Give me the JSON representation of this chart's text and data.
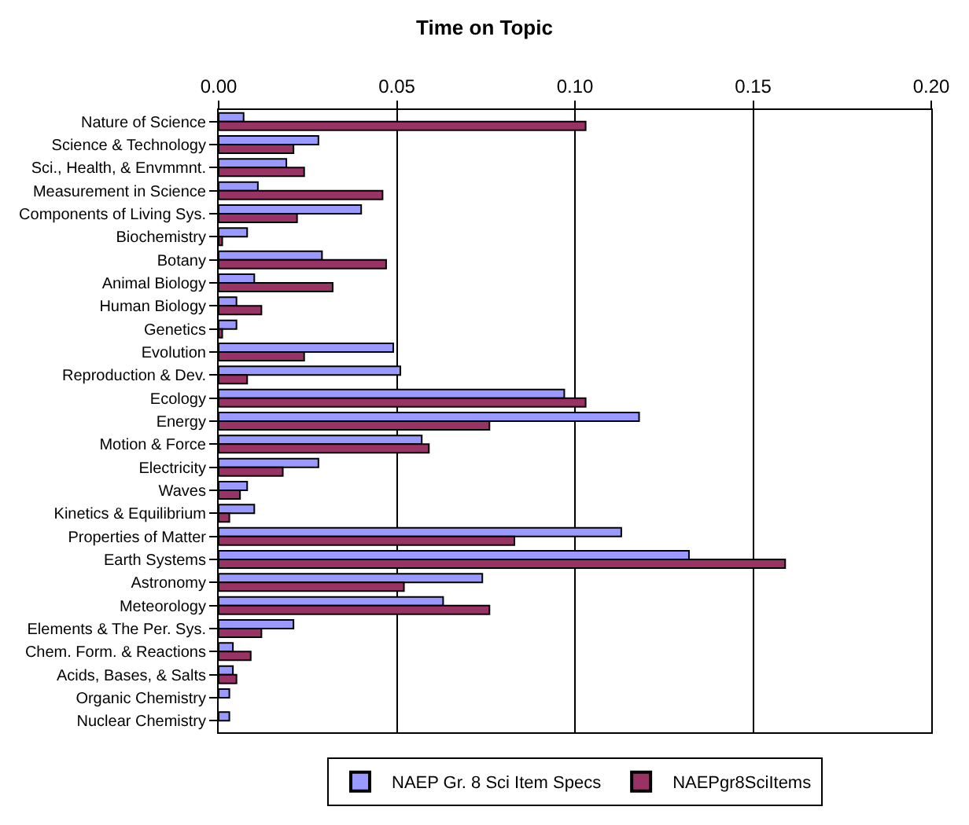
{
  "chart_data": {
    "type": "bar",
    "orientation": "horizontal",
    "title": "Time on Topic",
    "categories": [
      "Nature of Science",
      "Science & Technology",
      "Sci., Health, & Envmmnt.",
      "Measurement in Science",
      "Components of Living Sys.",
      "Biochemistry",
      "Botany",
      "Animal Biology",
      "Human Biology",
      "Genetics",
      "Evolution",
      "Reproduction & Dev.",
      "Ecology",
      "Energy",
      "Motion & Force",
      "Electricity",
      "Waves",
      "Kinetics & Equilibrium",
      "Properties of Matter",
      "Earth Systems",
      "Astronomy",
      "Meteorology",
      "Elements & The Per. Sys.",
      "Chem. Form. & Reactions",
      "Acids, Bases, & Salts",
      "Organic Chemistry",
      "Nuclear Chemistry"
    ],
    "series": [
      {
        "name": "NAEP Gr. 8 Sci Item Specs",
        "color": "#9999ff",
        "values": [
          0.007,
          0.028,
          0.019,
          0.011,
          0.04,
          0.008,
          0.029,
          0.01,
          0.005,
          0.005,
          0.049,
          0.051,
          0.097,
          0.118,
          0.057,
          0.028,
          0.008,
          0.01,
          0.113,
          0.132,
          0.074,
          0.063,
          0.021,
          0.004,
          0.004,
          0.003,
          0.003
        ]
      },
      {
        "name": "NAEPgr8SciItems",
        "color": "#993366",
        "values": [
          0.103,
          0.021,
          0.024,
          0.046,
          0.022,
          0.001,
          0.047,
          0.032,
          0.012,
          0.001,
          0.024,
          0.008,
          0.103,
          0.076,
          0.059,
          0.018,
          0.006,
          0.003,
          0.083,
          0.159,
          0.052,
          0.076,
          0.012,
          0.009,
          0.005,
          0,
          0
        ]
      }
    ],
    "xlim": [
      0,
      0.2
    ],
    "xticks": [
      {
        "value": 0,
        "label": "0.00"
      },
      {
        "value": 0.05,
        "label": "0.05"
      },
      {
        "value": 0.1,
        "label": "0.10"
      },
      {
        "value": 0.15,
        "label": "0.15"
      },
      {
        "value": 0.2,
        "label": "0.20"
      }
    ],
    "grid": "x",
    "legend": "bottom"
  }
}
